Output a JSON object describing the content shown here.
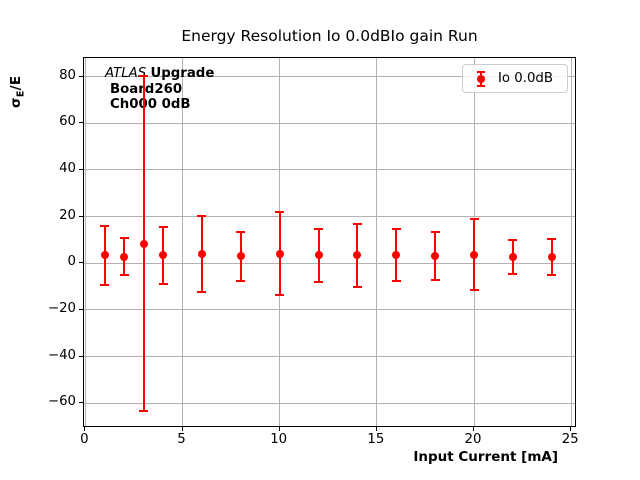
{
  "figure": {
    "title": "Energy Resolution Io 0.0dBIo gain Run",
    "ylabel_sigma": "σ",
    "ylabel_sub": "E",
    "ylabel_rest": "/E",
    "xlabel": "Input Current [mA]",
    "annotation": {
      "atlas": "ATLAS",
      "upgrade": "Upgrade",
      "line2": "Board260",
      "line3": "Ch000 0dB"
    },
    "legend": {
      "label": "Io 0.0dB",
      "marker_color": "#ff0000"
    }
  },
  "chart_data": {
    "type": "scatter",
    "title": "Energy Resolution Io 0.0dBIo gain Run",
    "xlabel": "Input Current [mA]",
    "ylabel": "sigma_E/E",
    "grid": true,
    "legend_position": "upper right",
    "xlim": [
      -0.07,
      25.3
    ],
    "ylim": [
      -70.6,
      88.0
    ],
    "xticks": [
      0,
      5,
      10,
      15,
      20,
      25
    ],
    "yticks": [
      80,
      60,
      40,
      20,
      0,
      -20,
      -40,
      -60
    ],
    "series": [
      {
        "name": "Io 0.0dB",
        "color": "#ff0000",
        "marker": "circle-with-errorbars",
        "x": [
          1,
          2,
          3,
          4,
          6,
          8,
          10,
          12,
          14,
          16,
          18,
          20,
          22,
          24
        ],
        "y": [
          3.4,
          2.8,
          8.4,
          3.4,
          3.9,
          3.1,
          4.1,
          3.4,
          3.4,
          3.4,
          3.1,
          3.7,
          2.7,
          2.7
        ],
        "yerr": [
          12.5,
          7.9,
          71.7,
          12.2,
          16.3,
          10.5,
          17.9,
          11.5,
          13.4,
          11.1,
          10.3,
          15.2,
          7.5,
          7.7
        ]
      }
    ]
  }
}
